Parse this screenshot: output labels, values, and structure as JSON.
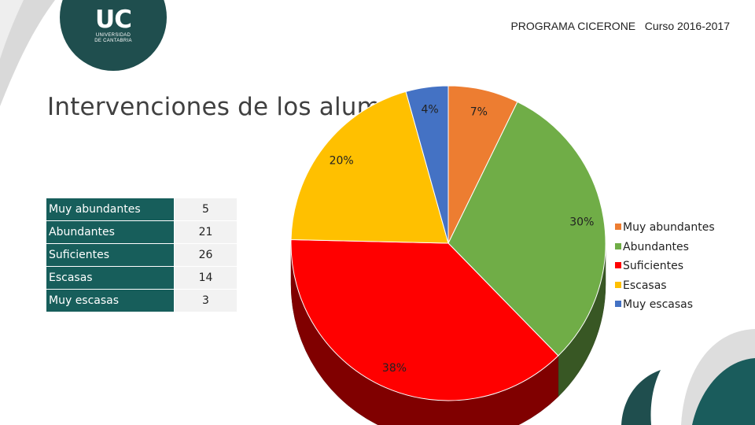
{
  "header": {
    "logo_text": "UC",
    "logo_subtitle_1": "UNIVERSIDAD",
    "logo_subtitle_2": "DE CANTABRIA",
    "program": "PROGRAMA CICERONE   Curso 2016-2017"
  },
  "title": "Intervenciones de los alumnos",
  "table": {
    "rows": [
      {
        "label": "Muy abundantes",
        "value": "5"
      },
      {
        "label": "Abundantes",
        "value": "21"
      },
      {
        "label": "Suficientes",
        "value": "26"
      },
      {
        "label": "Escasas",
        "value": "14"
      },
      {
        "label": "Muy escasas",
        "value": "3"
      }
    ]
  },
  "chart_data": {
    "type": "pie",
    "style": "3d",
    "title": "",
    "categories": [
      "Muy abundantes",
      "Abundantes",
      "Suficientes",
      "Escasas",
      "Muy escasas"
    ],
    "values": [
      5,
      21,
      26,
      14,
      3
    ],
    "percent_labels": [
      "7%",
      "30%",
      "38%",
      "20%",
      "4%"
    ],
    "colors": [
      "#ed7d31",
      "#70ad47",
      "#ff0000",
      "#ffc000",
      "#4472c4"
    ],
    "legend": "right"
  }
}
